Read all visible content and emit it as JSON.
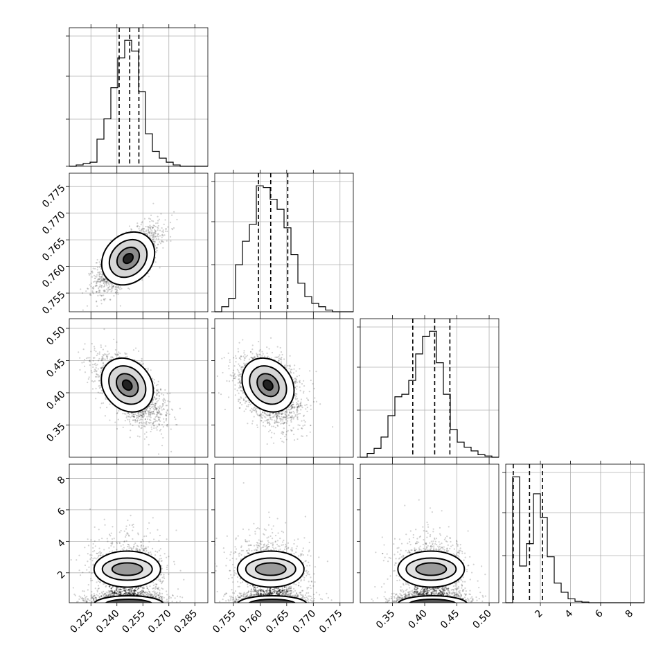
{
  "chart_data": [
    {
      "panel": "hist-0",
      "type": "histogram",
      "xlim": [
        0.2125,
        0.2925
      ],
      "x_ticks": [
        0.225,
        0.24,
        0.255,
        0.27,
        0.285
      ],
      "tick_labels_y": [],
      "grid": true,
      "bin_edges_start": 0.2125,
      "bin_width": 0.004,
      "counts": [
        0,
        1,
        2,
        3,
        20,
        35,
        58,
        80,
        93,
        85,
        55,
        24,
        11,
        6,
        3,
        1,
        0,
        0,
        0,
        0
      ],
      "quantiles": [
        0.2413,
        0.2474,
        0.2527
      ]
    },
    {
      "panel": "hist-1",
      "type": "histogram",
      "xlim": [
        0.7515,
        0.7775
      ],
      "x_ticks": [
        0.755,
        0.76,
        0.765,
        0.77,
        0.775
      ],
      "grid": true,
      "bin_edges_start": 0.7515,
      "bin_width": 0.0013,
      "counts": [
        0,
        3,
        8,
        28,
        42,
        52,
        75,
        74,
        67,
        61,
        50,
        34,
        17,
        9,
        5,
        3,
        1,
        0,
        0,
        0
      ],
      "quantiles": [
        0.7597,
        0.762,
        0.7652
      ]
    },
    {
      "panel": "hist-2",
      "type": "histogram",
      "xlim": [
        0.3,
        0.515
      ],
      "x_ticks": [
        0.35,
        0.4,
        0.45,
        0.5
      ],
      "grid": true,
      "bin_edges_start": 0.3,
      "bin_width": 0.01075,
      "counts": [
        0,
        3,
        7,
        16,
        33,
        48,
        50,
        61,
        82,
        96,
        100,
        75,
        50,
        22,
        12,
        8,
        5,
        2,
        1,
        0
      ],
      "quantiles": [
        0.3815,
        0.4155,
        0.4391
      ]
    },
    {
      "panel": "hist-3",
      "type": "histogram",
      "xlim": [
        -0.3,
        8.9
      ],
      "x_ticks": [
        2,
        4,
        6,
        8
      ],
      "grid": true,
      "bin_edges_start": -0.3,
      "bin_width": 0.46,
      "counts": [
        0,
        96,
        28,
        45,
        83,
        65,
        35,
        15,
        8,
        3,
        1,
        0.5,
        0,
        0,
        0,
        0,
        0,
        0,
        0,
        0
      ],
      "quantiles": [
        0.2,
        1.28,
        2.14
      ]
    },
    {
      "panel": "scatter-1-0",
      "type": "scatter-density",
      "xlim": [
        0.2125,
        0.2925
      ],
      "ylim": [
        0.7515,
        0.7775
      ],
      "x_ticks": [
        0.225,
        0.24,
        0.255,
        0.27,
        0.285
      ],
      "y_ticks": [
        0.755,
        0.76,
        0.765,
        0.77,
        0.775
      ],
      "center": [
        0.2465,
        0.7615
      ],
      "correlation": 0.7
    },
    {
      "panel": "scatter-2-0",
      "type": "scatter-density",
      "xlim": [
        0.2125,
        0.2925
      ],
      "ylim": [
        0.3,
        0.515
      ],
      "x_ticks": [
        0.225,
        0.24,
        0.255,
        0.27,
        0.285
      ],
      "y_ticks": [
        0.35,
        0.4,
        0.45,
        0.5
      ],
      "center": [
        0.246,
        0.412
      ],
      "correlation": -0.55
    },
    {
      "panel": "scatter-2-1",
      "type": "scatter-density",
      "xlim": [
        0.7515,
        0.7775
      ],
      "ylim": [
        0.3,
        0.515
      ],
      "x_ticks": [
        0.755,
        0.76,
        0.765,
        0.77,
        0.775
      ],
      "y_ticks": [],
      "center": [
        0.7615,
        0.412
      ],
      "correlation": -0.3
    },
    {
      "panel": "scatter-3-0",
      "type": "scatter-density",
      "xlim": [
        0.2125,
        0.2925
      ],
      "ylim": [
        0.1,
        8.9
      ],
      "x_ticks": [
        0.225,
        0.24,
        0.255,
        0.27,
        0.285
      ],
      "y_ticks": [
        2,
        4,
        6,
        8
      ],
      "center": [
        0.246,
        1.0
      ]
    },
    {
      "panel": "scatter-3-1",
      "type": "scatter-density",
      "xlim": [
        0.7515,
        0.7775
      ],
      "ylim": [
        0.1,
        8.9
      ],
      "x_ticks": [
        0.755,
        0.76,
        0.765,
        0.77,
        0.775
      ],
      "center": [
        0.762,
        1.0
      ]
    },
    {
      "panel": "scatter-3-2",
      "type": "scatter-density",
      "xlim": [
        0.3,
        0.515
      ],
      "ylim": [
        0.1,
        8.9
      ],
      "x_ticks": [
        0.35,
        0.4,
        0.45,
        0.5
      ],
      "center": [
        0.41,
        1.0
      ]
    }
  ],
  "tick_text": {
    "x0": [
      "0.225",
      "0.240",
      "0.255",
      "0.270",
      "0.285"
    ],
    "x1": [
      "0.755",
      "0.760",
      "0.765",
      "0.770",
      "0.775"
    ],
    "x2": [
      "0.35",
      "0.40",
      "0.45",
      "0.50"
    ],
    "x3": [
      "2",
      "4",
      "6",
      "8"
    ],
    "y1": [
      "0.755",
      "0.760",
      "0.765",
      "0.770",
      "0.775"
    ],
    "y2": [
      "0.35",
      "0.40",
      "0.45",
      "0.50"
    ],
    "y3": [
      "2",
      "4",
      "6",
      "8"
    ]
  }
}
